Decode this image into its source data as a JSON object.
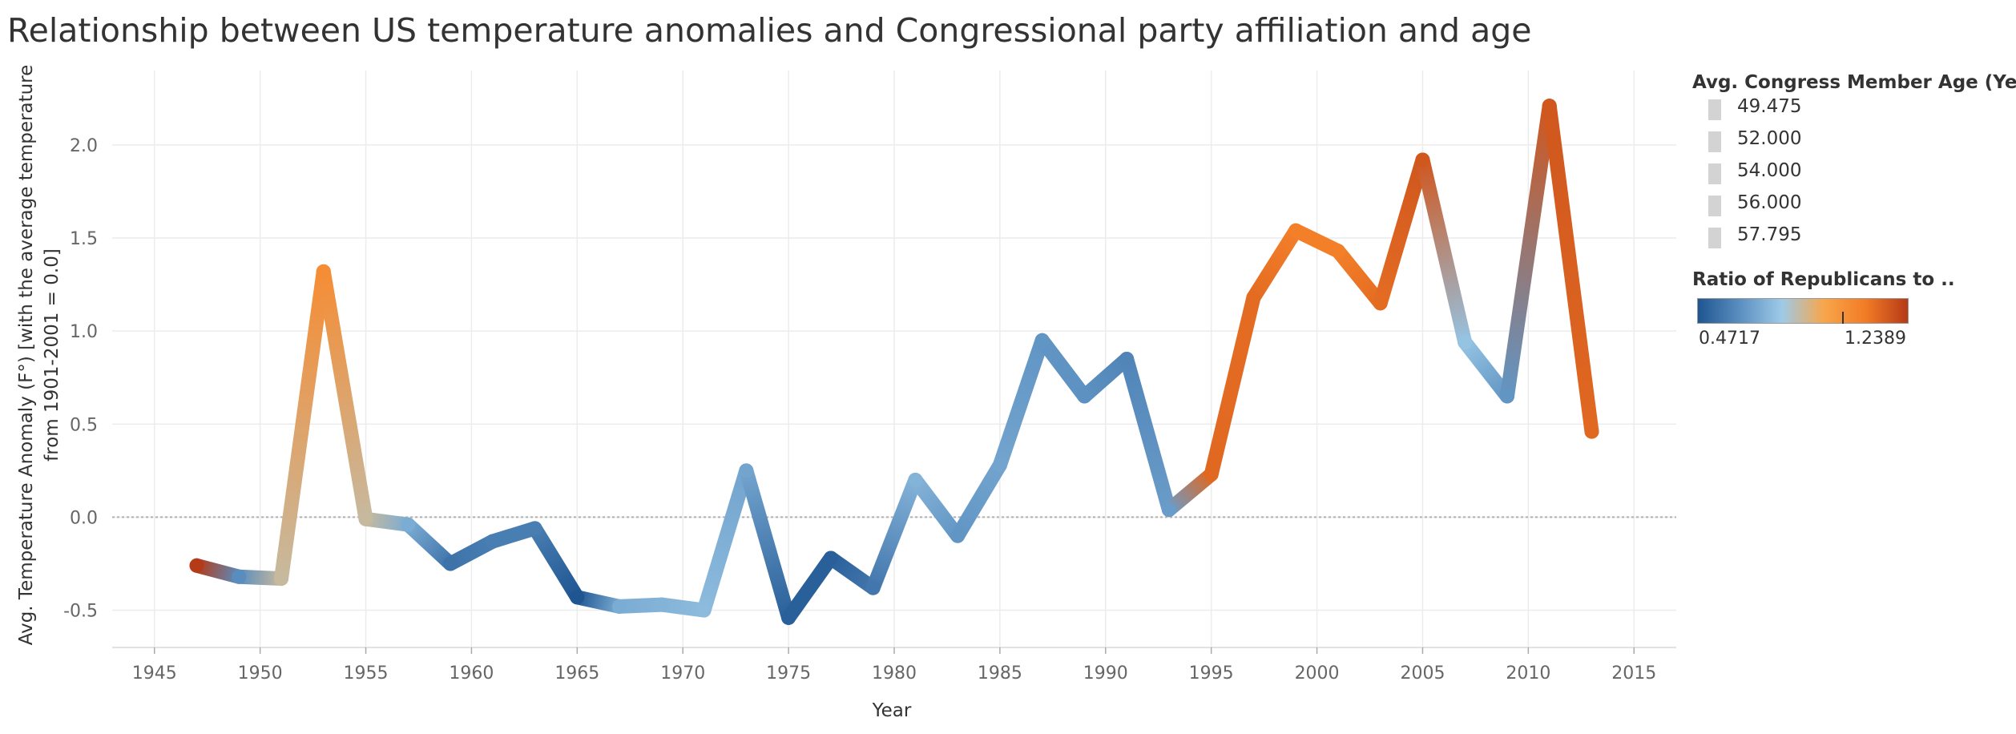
{
  "chart_data": {
    "type": "line",
    "title": "Relationship between US temperature anomalies and Congressional party affiliation and age",
    "xlabel": "Year",
    "ylabel_line1": "Avg. Temperature Anomaly (F°) [with the average temperature",
    "ylabel_line2": "from 1901-2001 = 0.0]",
    "xlim": [
      1943,
      2017
    ],
    "ylim": [
      -0.7,
      2.4
    ],
    "x_ticks": [
      1945,
      1950,
      1955,
      1960,
      1965,
      1970,
      1975,
      1980,
      1985,
      1990,
      1995,
      2000,
      2005,
      2010,
      2015
    ],
    "y_ticks": [
      -0.5,
      0.0,
      0.5,
      1.0,
      1.5,
      2.0
    ],
    "y_tick_labels": [
      "-0.5",
      "0.0",
      "0.5",
      "1.0",
      "1.5",
      "2.0"
    ],
    "grid": true,
    "reference_line_y": 0.0,
    "points": [
      {
        "year": 1947,
        "value": -0.26,
        "ratio": 1.2389
      },
      {
        "year": 1949,
        "value": -0.32,
        "ratio": 0.62
      },
      {
        "year": 1951,
        "value": -0.33,
        "ratio": 0.85
      },
      {
        "year": 1953,
        "value": 1.32,
        "ratio": 1.02
      },
      {
        "year": 1955,
        "value": -0.01,
        "ratio": 0.85
      },
      {
        "year": 1957,
        "value": -0.04,
        "ratio": 0.7
      },
      {
        "year": 1959,
        "value": -0.25,
        "ratio": 0.55
      },
      {
        "year": 1961,
        "value": -0.13,
        "ratio": 0.58
      },
      {
        "year": 1963,
        "value": -0.06,
        "ratio": 0.58
      },
      {
        "year": 1965,
        "value": -0.43,
        "ratio": 0.4717
      },
      {
        "year": 1967,
        "value": -0.48,
        "ratio": 0.7
      },
      {
        "year": 1969,
        "value": -0.47,
        "ratio": 0.72
      },
      {
        "year": 1971,
        "value": -0.5,
        "ratio": 0.74
      },
      {
        "year": 1973,
        "value": 0.25,
        "ratio": 0.68
      },
      {
        "year": 1975,
        "value": -0.54,
        "ratio": 0.5
      },
      {
        "year": 1977,
        "value": -0.22,
        "ratio": 0.5
      },
      {
        "year": 1979,
        "value": -0.38,
        "ratio": 0.56
      },
      {
        "year": 1981,
        "value": 0.2,
        "ratio": 0.72
      },
      {
        "year": 1983,
        "value": -0.1,
        "ratio": 0.64
      },
      {
        "year": 1985,
        "value": 0.28,
        "ratio": 0.68
      },
      {
        "year": 1987,
        "value": 0.95,
        "ratio": 0.64
      },
      {
        "year": 1989,
        "value": 0.65,
        "ratio": 0.63
      },
      {
        "year": 1991,
        "value": 0.85,
        "ratio": 0.6
      },
      {
        "year": 1993,
        "value": 0.04,
        "ratio": 0.66
      },
      {
        "year": 1995,
        "value": 0.23,
        "ratio": 1.13
      },
      {
        "year": 1997,
        "value": 1.18,
        "ratio": 1.12
      },
      {
        "year": 1999,
        "value": 1.54,
        "ratio": 1.07
      },
      {
        "year": 2001,
        "value": 1.43,
        "ratio": 1.07
      },
      {
        "year": 2003,
        "value": 1.15,
        "ratio": 1.12
      },
      {
        "year": 2005,
        "value": 1.92,
        "ratio": 1.17
      },
      {
        "year": 2007,
        "value": 0.94,
        "ratio": 0.76
      },
      {
        "year": 2009,
        "value": 0.65,
        "ratio": 0.64
      },
      {
        "year": 2011,
        "value": 2.21,
        "ratio": 1.17
      },
      {
        "year": 2013,
        "value": 0.46,
        "ratio": 1.13
      }
    ],
    "legend_size": {
      "title": "Avg. Congress Member Age (Years)",
      "items": [
        "49.475",
        "52.000",
        "54.000",
        "56.000",
        "57.795"
      ]
    },
    "legend_color": {
      "title": "Ratio of Republicans to ..",
      "min": 0.4717,
      "max": 1.2389,
      "min_label": "0.4717",
      "max_label": "1.2389",
      "colors": [
        "#1f5591",
        "#5b8fc0",
        "#9dcae7",
        "#f8a64b",
        "#f27b25",
        "#b53a18"
      ]
    }
  }
}
